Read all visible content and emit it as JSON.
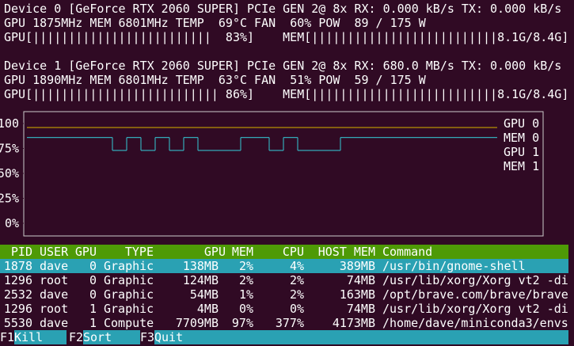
{
  "devices": [
    {
      "header": {
        "name": "Device 0",
        "model": "[GeForce RTX 2060 SUPER]",
        "pcie": "PCIe",
        "gen_label": "GEN",
        "gen": "2@ 8x",
        "rx_label": "RX:",
        "rx": "0.000 kB/s",
        "tx_label": "TX:",
        "tx": "0.000 kB/s"
      },
      "stats": {
        "gpu_label": "GPU",
        "gpu_clock": "1875MHz",
        "mem_label": "MEM",
        "mem_clock": "6801MHz",
        "temp_label": "TEMP",
        "temp": "69",
        "temp_unit": "°C",
        "fan_label": "FAN",
        "fan": "60%",
        "pow_label": "POW",
        "power": "89 / 175 W"
      },
      "bars": {
        "gpu_label": "GPU[",
        "gpu_bar": "|||||||||||||||||||||||||",
        "gpu_util": "83%]",
        "mem_label": "MEM[",
        "mem_bar": "||||||||||||||||||||||||||",
        "mem_usage": "8.1G/8.4G]"
      }
    },
    {
      "header": {
        "name": "Device 1",
        "model": "[GeForce RTX 2060 SUPER]",
        "pcie": "PCIe",
        "gen_label": "GEN",
        "gen": "2@ 8x",
        "rx_label": "RX:",
        "rx": "680.0 MB/s",
        "tx_label": "TX:",
        "tx": "0.000 kB/s"
      },
      "stats": {
        "gpu_label": "GPU",
        "gpu_clock": "1890MHz",
        "mem_label": "MEM",
        "mem_clock": "6801MHz",
        "temp_label": "TEMP",
        "temp": "63",
        "temp_unit": "°C",
        "fan_label": "FAN",
        "fan": "51%",
        "pow_label": "POW",
        "power": "59 / 175 W"
      },
      "bars": {
        "gpu_label": "GPU[",
        "gpu_bar": "||||||||||||||||||||||||||",
        "gpu_util": "86%]",
        "mem_label": "MEM[",
        "mem_bar": "||||||||||||||||||||||||||",
        "mem_usage": "8.1G/8.4G]"
      }
    }
  ],
  "plot": {
    "type": "line",
    "ylim": [
      0,
      100
    ],
    "yticks": [
      {
        "value": 100,
        "label": "100"
      },
      {
        "value": 75,
        "label": "75%"
      },
      {
        "value": 50,
        "label": "50%"
      },
      {
        "value": 25,
        "label": "25%"
      },
      {
        "value": 0,
        "label": "0%"
      }
    ],
    "series": [
      {
        "name": "GPU 0",
        "color": "#34a9b8",
        "values": [
          86,
          86,
          86,
          86,
          86,
          86,
          73,
          86,
          73,
          86,
          73,
          86,
          73,
          73,
          73,
          86,
          86,
          73,
          86,
          73,
          73,
          73,
          86,
          86,
          86,
          86,
          86,
          86,
          86,
          86,
          86,
          86,
          86
        ]
      },
      {
        "name": "MEM 0",
        "color": "#c4a000",
        "values": [
          96,
          96,
          96,
          96,
          96,
          96,
          96,
          96,
          96,
          96,
          96,
          96,
          96,
          96,
          96,
          96,
          96,
          96,
          96,
          96,
          96,
          96,
          96,
          96,
          96,
          96,
          96,
          96,
          96,
          96,
          96,
          96,
          96
        ]
      },
      {
        "name": "GPU 1",
        "color": "#8a6c8c"
      },
      {
        "name": "MEM 1",
        "color": "#6c9a16"
      }
    ]
  },
  "processes": {
    "columns": [
      "PID",
      "USER",
      "GPU",
      "TYPE",
      "GPU",
      "MEM",
      "CPU",
      "HOST MEM",
      "Command"
    ],
    "rows": [
      [
        "1878",
        "dave",
        "0",
        "Graphic",
        "138MB",
        "2%",
        "4%",
        "389MB",
        "/usr/bin/gnome-shell"
      ],
      [
        "1296",
        "root",
        "0",
        "Graphic",
        "124MB",
        "2%",
        "2%",
        "74MB",
        "/usr/lib/xorg/Xorg vt2 -di"
      ],
      [
        "2532",
        "dave",
        "0",
        "Graphic",
        "54MB",
        "1%",
        "2%",
        "163MB",
        "/opt/brave.com/brave/brave"
      ],
      [
        "1296",
        "root",
        "1",
        "Graphic",
        "4MB",
        "0%",
        "0%",
        "74MB",
        "/usr/lib/xorg/Xorg vt2 -di"
      ],
      [
        "5530",
        "dave",
        "1",
        "Compute",
        "7709MB",
        "97%",
        "377%",
        "4173MB",
        "/home/dave/miniconda3/envs"
      ]
    ]
  },
  "footer": [
    {
      "key": "F1",
      "label": "Kill"
    },
    {
      "key": "F2",
      "label": "Sort"
    },
    {
      "key": "F3",
      "label": "Quit"
    }
  ]
}
